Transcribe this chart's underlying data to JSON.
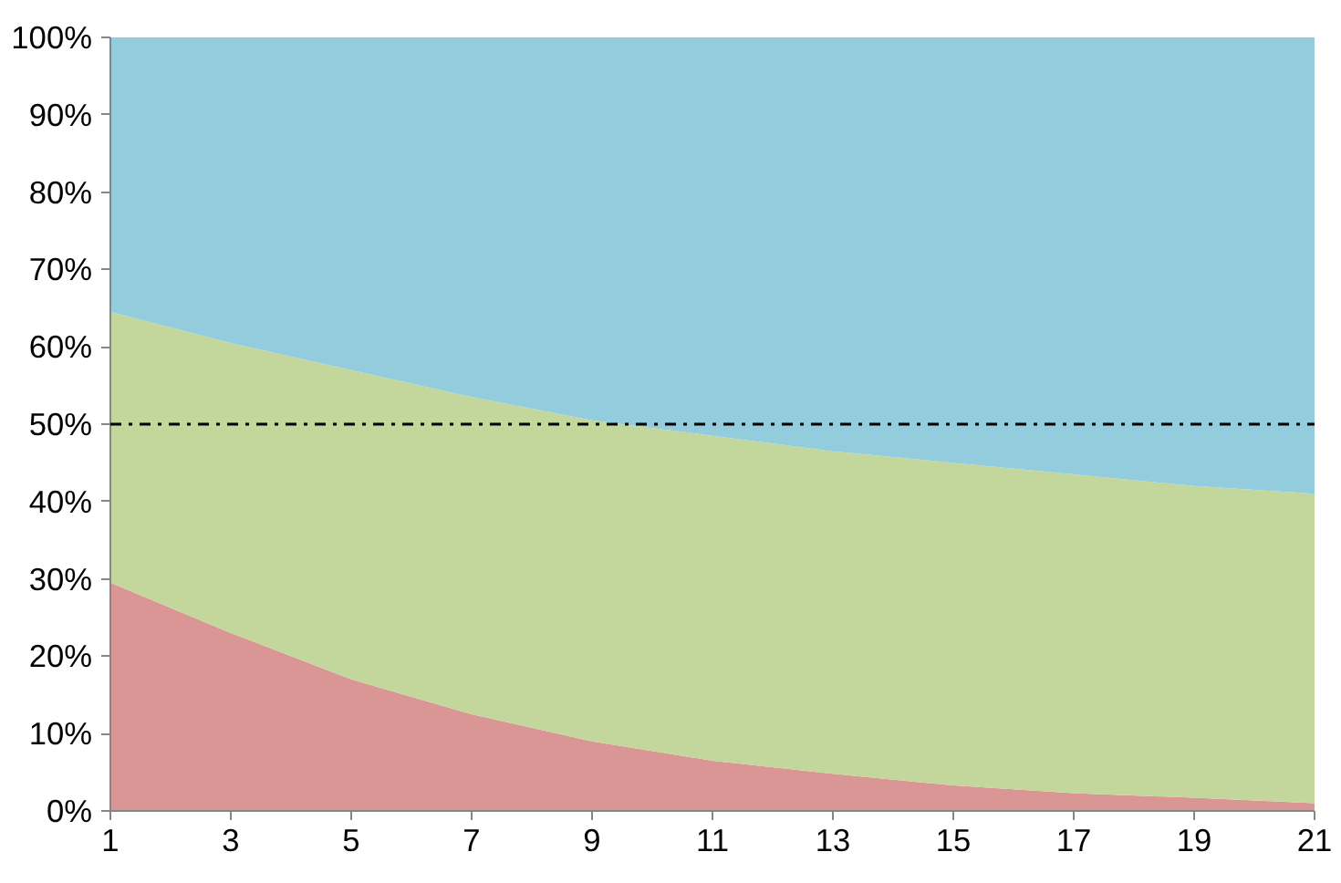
{
  "chart_data": {
    "type": "area",
    "stacked": true,
    "x": [
      1,
      3,
      5,
      7,
      9,
      11,
      13,
      15,
      17,
      19,
      21
    ],
    "series": [
      {
        "color": "#d99694",
        "values": [
          29.5,
          23,
          17,
          12.5,
          9,
          6.5,
          4.8,
          3.3,
          2.3,
          1.7,
          1
        ]
      },
      {
        "color": "#c3d69b",
        "values": [
          35,
          37.5,
          40,
          41,
          41.5,
          42,
          41.7,
          41.7,
          41.2,
          40.3,
          40
        ]
      },
      {
        "color": "#93cddd",
        "values": [
          35.5,
          39.5,
          43,
          46.5,
          49.5,
          51.5,
          53.5,
          55,
          56.5,
          58,
          59
        ]
      }
    ],
    "xlim": [
      1,
      21
    ],
    "xticks": [
      1,
      3,
      5,
      7,
      9,
      11,
      13,
      15,
      17,
      19,
      21
    ],
    "ylim": [
      0,
      100
    ],
    "yticks": [
      {
        "value": 0,
        "label": "0%"
      },
      {
        "value": 10,
        "label": "10%"
      },
      {
        "value": 20,
        "label": "20%"
      },
      {
        "value": 30,
        "label": "30%"
      },
      {
        "value": 40,
        "label": "40%"
      },
      {
        "value": 50,
        "label": "50%"
      },
      {
        "value": 60,
        "label": "60%"
      },
      {
        "value": 70,
        "label": "70%"
      },
      {
        "value": 80,
        "label": "80%"
      },
      {
        "value": 90,
        "label": "90%"
      },
      {
        "value": 100,
        "label": "100%"
      }
    ],
    "ref_lines": [
      {
        "axis": "y",
        "value": 50,
        "color": "#000000",
        "line_style": "dashdot"
      }
    ],
    "grid": false
  }
}
